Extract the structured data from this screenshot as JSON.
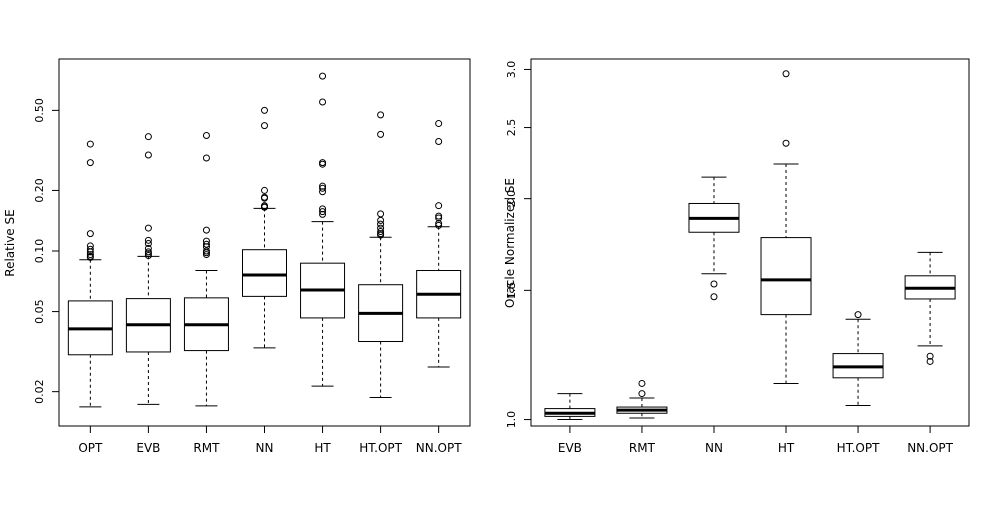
{
  "chart_data": [
    {
      "type": "boxplot",
      "ylabel": "Relative SE",
      "yscale": "log",
      "ylim": [
        0.0135,
        0.9
      ],
      "yticks": [
        {
          "value": 0.02,
          "label": "0.02"
        },
        {
          "value": 0.05,
          "label": "0.05"
        },
        {
          "value": 0.1,
          "label": "0.10"
        },
        {
          "value": 0.2,
          "label": "0.20"
        },
        {
          "value": 0.5,
          "label": "0.50"
        }
      ],
      "categories": [
        "OPT",
        "EVB",
        "RMT",
        "NN",
        "HT",
        "HT.OPT",
        "NN.OPT"
      ],
      "boxes": [
        {
          "name": "OPT",
          "whisker_low": 0.0168,
          "q1": 0.0305,
          "median": 0.041,
          "q3": 0.0565,
          "whisker_high": 0.0905,
          "outliers": [
            0.34,
            0.275,
            0.122,
            0.106,
            0.102,
            0.099,
            0.096,
            0.094,
            0.093
          ]
        },
        {
          "name": "EVB",
          "whisker_low": 0.0173,
          "q1": 0.0315,
          "median": 0.043,
          "q3": 0.058,
          "whisker_high": 0.094,
          "outliers": [
            0.37,
            0.3,
            0.13,
            0.113,
            0.109,
            0.103,
            0.099,
            0.097,
            0.095
          ]
        },
        {
          "name": "RMT",
          "whisker_low": 0.017,
          "q1": 0.032,
          "median": 0.043,
          "q3": 0.0585,
          "whisker_high": 0.08,
          "outliers": [
            0.375,
            0.29,
            0.127,
            0.112,
            0.108,
            0.105,
            0.1,
            0.098,
            0.096
          ]
        },
        {
          "name": "NN",
          "whisker_low": 0.033,
          "q1": 0.0595,
          "median": 0.076,
          "q3": 0.1015,
          "whisker_high": 0.163,
          "outliers": [
            0.5,
            0.42,
            0.2,
            0.185,
            0.183,
            0.168,
            0.166,
            0.165
          ]
        },
        {
          "name": "HT",
          "whisker_low": 0.0213,
          "q1": 0.0465,
          "median": 0.064,
          "q3": 0.087,
          "whisker_high": 0.14,
          "outliers": [
            0.74,
            0.55,
            0.275,
            0.27,
            0.21,
            0.205,
            0.197,
            0.162,
            0.157,
            0.152
          ]
        },
        {
          "name": "HT.OPT",
          "whisker_low": 0.0187,
          "q1": 0.0355,
          "median": 0.049,
          "q3": 0.068,
          "whisker_high": 0.117,
          "outliers": [
            0.475,
            0.38,
            0.153,
            0.142,
            0.136,
            0.13,
            0.125,
            0.122,
            0.12
          ]
        },
        {
          "name": "NN.OPT",
          "whisker_low": 0.0265,
          "q1": 0.0465,
          "median": 0.061,
          "q3": 0.08,
          "whisker_high": 0.132,
          "outliers": [
            0.43,
            0.35,
            0.168,
            0.149,
            0.146,
            0.137,
            0.134
          ]
        }
      ]
    },
    {
      "type": "boxplot",
      "ylabel": "Oracle Normalized SE",
      "yscale": "log",
      "ylim": [
        0.98,
        3.1
      ],
      "yticks": [
        {
          "value": 1.0,
          "label": "1.0"
        },
        {
          "value": 1.5,
          "label": "1.5"
        },
        {
          "value": 2.0,
          "label": "2.0"
        },
        {
          "value": 2.5,
          "label": "2.5"
        },
        {
          "value": 3.0,
          "label": "3.0"
        }
      ],
      "categories": [
        "EVB",
        "RMT",
        "NN",
        "HT",
        "HT.OPT",
        "NN.OPT"
      ],
      "boxes": [
        {
          "name": "EVB",
          "whisker_low": 1.0,
          "q1": 1.01,
          "median": 1.02,
          "q3": 1.035,
          "whisker_high": 1.085,
          "outliers": []
        },
        {
          "name": "RMT",
          "whisker_low": 1.005,
          "q1": 1.02,
          "median": 1.03,
          "q3": 1.04,
          "whisker_high": 1.07,
          "outliers": [
            1.12,
            1.085
          ]
        },
        {
          "name": "NN",
          "whisker_low": 1.58,
          "q1": 1.8,
          "median": 1.88,
          "q3": 1.97,
          "whisker_high": 2.14,
          "outliers": [
            1.53,
            1.47
          ]
        },
        {
          "name": "HT",
          "whisker_low": 1.12,
          "q1": 1.39,
          "median": 1.55,
          "q3": 1.77,
          "whisker_high": 2.23,
          "outliers": [
            2.96,
            2.38
          ]
        },
        {
          "name": "HT.OPT",
          "whisker_low": 1.045,
          "q1": 1.14,
          "median": 1.18,
          "q3": 1.23,
          "whisker_high": 1.37,
          "outliers": [
            1.39
          ]
        },
        {
          "name": "NN.OPT",
          "whisker_low": 1.26,
          "q1": 1.46,
          "median": 1.51,
          "q3": 1.57,
          "whisker_high": 1.69,
          "outliers": [
            1.22,
            1.2
          ]
        }
      ]
    }
  ]
}
